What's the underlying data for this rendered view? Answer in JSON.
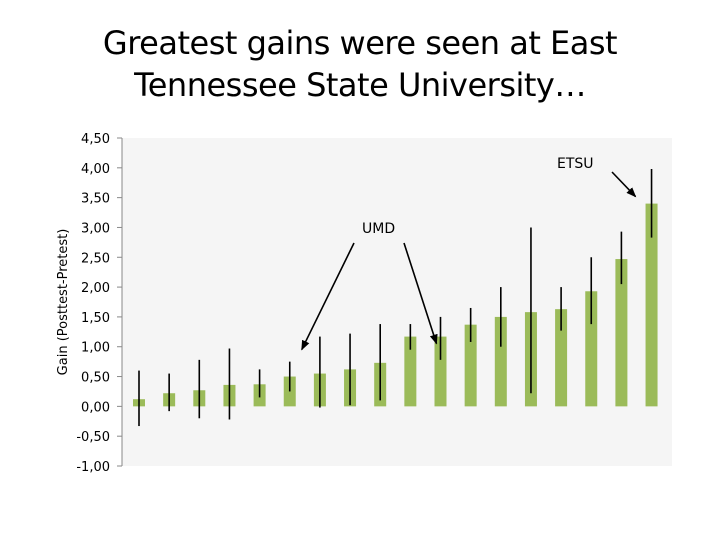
{
  "chart_data": {
    "type": "bar",
    "title_lines": [
      "Greatest gains were seen at East",
      "Tennessee State University…"
    ],
    "xlabel": "",
    "ylabel": "Gain (Posttest-Pretest)",
    "ylim": [
      -1.0,
      4.5
    ],
    "yticks": [
      "-1,00",
      "-0,50",
      "0,00",
      "0,50",
      "1,00",
      "1,50",
      "2,00",
      "2,50",
      "3,00",
      "3,50",
      "4,00",
      "4,50"
    ],
    "ytick_values": [
      -1.0,
      -0.5,
      0.0,
      0.5,
      1.0,
      1.5,
      2.0,
      2.5,
      3.0,
      3.5,
      4.0,
      4.5
    ],
    "grid": false,
    "bar_color": "#9bbb59",
    "background_color": "#f5f5f5",
    "values": [
      0.12,
      0.22,
      0.27,
      0.36,
      0.37,
      0.5,
      0.55,
      0.62,
      0.73,
      1.17,
      1.17,
      1.37,
      1.5,
      1.58,
      1.63,
      1.93,
      2.47,
      3.4
    ],
    "error_low": [
      -0.33,
      -0.08,
      -0.2,
      -0.22,
      0.15,
      0.25,
      -0.02,
      0.02,
      0.1,
      0.95,
      0.78,
      1.08,
      1.0,
      0.22,
      1.27,
      1.38,
      2.05,
      2.83
    ],
    "error_high": [
      0.6,
      0.55,
      0.78,
      0.97,
      0.62,
      0.75,
      1.17,
      1.22,
      1.38,
      1.38,
      1.5,
      1.65,
      2.0,
      3.0,
      2.0,
      2.5,
      2.93,
      3.98
    ],
    "annotations": [
      {
        "text": "ETSU",
        "target_index": 17
      },
      {
        "text": "UMD",
        "target_indices": [
          5,
          10
        ]
      }
    ]
  }
}
